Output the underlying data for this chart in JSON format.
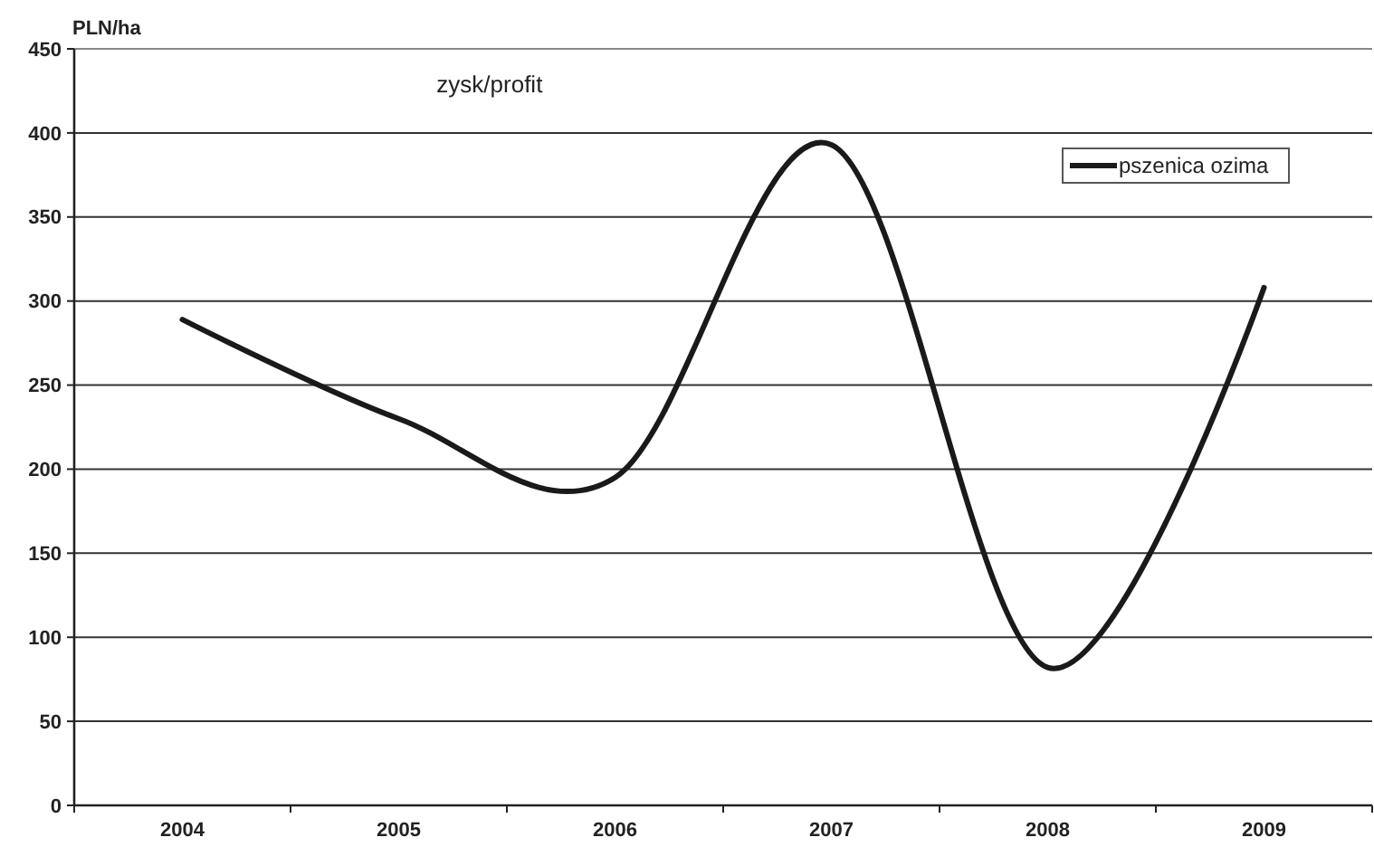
{
  "chart_data": {
    "type": "line",
    "title": "zysk/profit",
    "ylabel": "PLN/ha",
    "categories": [
      "2004",
      "2005",
      "2006",
      "2007",
      "2008",
      "2009"
    ],
    "series": [
      {
        "name": "pszenica ozima",
        "color": "#1a1a1a",
        "values": [
          289,
          230,
          195,
          393,
          82,
          308
        ]
      }
    ],
    "ylim": [
      0,
      450
    ],
    "yticks": [
      0,
      50,
      100,
      150,
      200,
      250,
      300,
      350,
      400,
      450
    ],
    "grid": "y",
    "legend": "top right",
    "line_style": "solid"
  }
}
